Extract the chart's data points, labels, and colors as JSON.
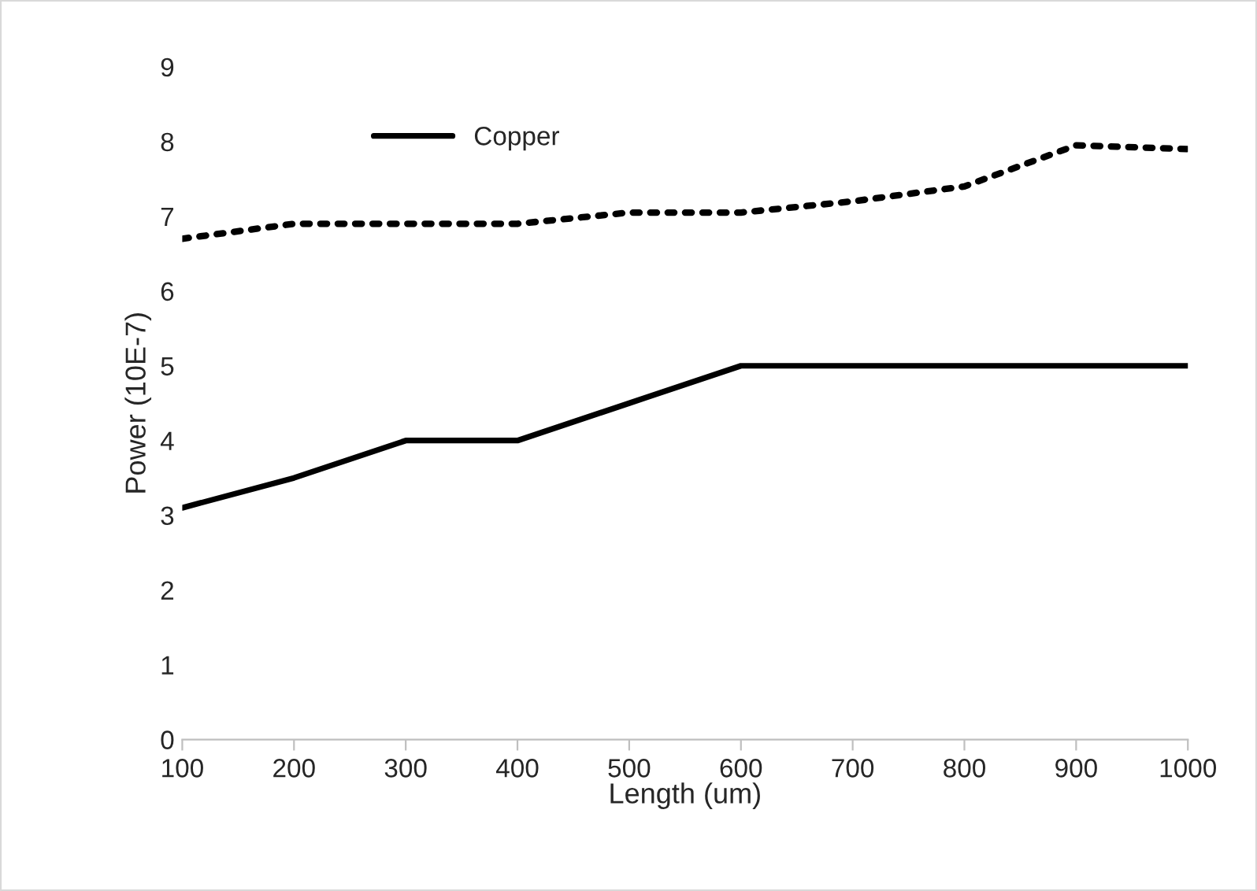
{
  "chart_data": {
    "type": "line",
    "xlabel": "Length (um)",
    "ylabel": "Power (10E-7)",
    "x": [
      100,
      200,
      300,
      400,
      500,
      600,
      700,
      800,
      900,
      1000
    ],
    "series": [
      {
        "name": "Copper",
        "color": "#000000",
        "line_style": "solid",
        "values": [
          3.1,
          3.5,
          4.0,
          4.0,
          4.5,
          5.0,
          5.0,
          5.0,
          5.0,
          5.0
        ]
      },
      {
        "color": "#000000",
        "line_style": "dotted",
        "values": [
          6.7,
          6.9,
          6.9,
          6.9,
          7.05,
          7.05,
          7.2,
          7.4,
          7.95,
          7.9
        ]
      }
    ],
    "xlim": [
      100,
      1000
    ],
    "xticks": [
      100,
      200,
      300,
      400,
      500,
      600,
      700,
      800,
      900,
      1000
    ],
    "ylim": [
      0,
      9
    ],
    "yticks": [
      0,
      1,
      2,
      3,
      4,
      5,
      6,
      7,
      8,
      9
    ],
    "grid": false,
    "legend": "top left",
    "marker": "none"
  }
}
